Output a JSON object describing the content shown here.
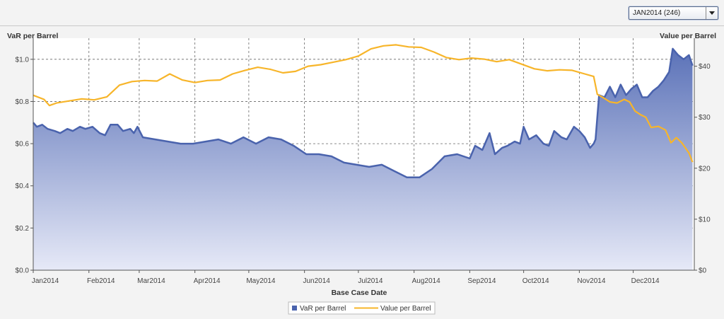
{
  "dropdown": {
    "selected": "JAN2014 (246)"
  },
  "colors": {
    "var": "#4a63ad",
    "value": "#f7b52a",
    "grid": "#666666",
    "background": "#f3f3f3"
  },
  "icons": {
    "dropdown": "triangle-down-icon"
  },
  "chart_data": {
    "type": "line",
    "xlabel": "Base Case Date",
    "y_left_label": "VaR per Barrel",
    "y_right_label": "Value per Barrel",
    "y_left_range": [
      0,
      1.1
    ],
    "y_right_range": [
      0,
      45.5
    ],
    "y_left_ticks": [
      {
        "v": 0.0,
        "label": "$0.0"
      },
      {
        "v": 0.2,
        "label": "$0.2"
      },
      {
        "v": 0.4,
        "label": "$0.4"
      },
      {
        "v": 0.6,
        "label": "$0.6"
      },
      {
        "v": 0.8,
        "label": "$0.8"
      },
      {
        "v": 1.0,
        "label": "$1.0"
      }
    ],
    "y_right_ticks": [
      {
        "v": 0,
        "label": "$0"
      },
      {
        "v": 10,
        "label": "$10"
      },
      {
        "v": 20,
        "label": "$20"
      },
      {
        "v": 30,
        "label": "$30"
      },
      {
        "v": 40,
        "label": "$40"
      }
    ],
    "x_ticks": [
      "Jan2014",
      "Feb2014",
      "Mar2014",
      "Apr2014",
      "May2014",
      "Jun2014",
      "Jul2014",
      "Aug2014",
      "Sep2014",
      "Oct2014",
      "Nov2014",
      "Dec2014"
    ],
    "grid": true,
    "legend_position": "bottom",
    "series": [
      {
        "name": "VaR per Barrel",
        "style": "area",
        "axis": "left",
        "points": [
          [
            "2014-01-01",
            0.7
          ],
          [
            "2014-01-03",
            0.68
          ],
          [
            "2014-01-06",
            0.69
          ],
          [
            "2014-01-09",
            0.67
          ],
          [
            "2014-01-13",
            0.66
          ],
          [
            "2014-01-16",
            0.65
          ],
          [
            "2014-01-20",
            0.67
          ],
          [
            "2014-01-23",
            0.66
          ],
          [
            "2014-01-27",
            0.68
          ],
          [
            "2014-01-30",
            0.67
          ],
          [
            "2014-02-03",
            0.68
          ],
          [
            "2014-02-07",
            0.65
          ],
          [
            "2014-02-10",
            0.64
          ],
          [
            "2014-02-13",
            0.69
          ],
          [
            "2014-02-17",
            0.69
          ],
          [
            "2014-02-20",
            0.66
          ],
          [
            "2014-02-24",
            0.67
          ],
          [
            "2014-02-26",
            0.65
          ],
          [
            "2014-02-28",
            0.68
          ],
          [
            "2014-03-03",
            0.63
          ],
          [
            "2014-03-10",
            0.62
          ],
          [
            "2014-03-17",
            0.61
          ],
          [
            "2014-03-24",
            0.6
          ],
          [
            "2014-03-31",
            0.6
          ],
          [
            "2014-04-07",
            0.61
          ],
          [
            "2014-04-14",
            0.62
          ],
          [
            "2014-04-21",
            0.6
          ],
          [
            "2014-04-28",
            0.63
          ],
          [
            "2014-05-05",
            0.6
          ],
          [
            "2014-05-12",
            0.63
          ],
          [
            "2014-05-19",
            0.62
          ],
          [
            "2014-05-26",
            0.59
          ],
          [
            "2014-06-02",
            0.55
          ],
          [
            "2014-06-09",
            0.55
          ],
          [
            "2014-06-16",
            0.54
          ],
          [
            "2014-06-23",
            0.51
          ],
          [
            "2014-06-30",
            0.5
          ],
          [
            "2014-07-07",
            0.49
          ],
          [
            "2014-07-14",
            0.5
          ],
          [
            "2014-07-21",
            0.47
          ],
          [
            "2014-07-28",
            0.44
          ],
          [
            "2014-08-04",
            0.44
          ],
          [
            "2014-08-11",
            0.48
          ],
          [
            "2014-08-18",
            0.54
          ],
          [
            "2014-08-25",
            0.55
          ],
          [
            "2014-09-01",
            0.53
          ],
          [
            "2014-09-04",
            0.59
          ],
          [
            "2014-09-08",
            0.57
          ],
          [
            "2014-09-12",
            0.65
          ],
          [
            "2014-09-15",
            0.55
          ],
          [
            "2014-09-19",
            0.58
          ],
          [
            "2014-09-22",
            0.59
          ],
          [
            "2014-09-26",
            0.61
          ],
          [
            "2014-09-29",
            0.6
          ],
          [
            "2014-10-01",
            0.68
          ],
          [
            "2014-10-04",
            0.62
          ],
          [
            "2014-10-08",
            0.64
          ],
          [
            "2014-10-12",
            0.6
          ],
          [
            "2014-10-15",
            0.59
          ],
          [
            "2014-10-18",
            0.66
          ],
          [
            "2014-10-22",
            0.63
          ],
          [
            "2014-10-25",
            0.62
          ],
          [
            "2014-10-29",
            0.68
          ],
          [
            "2014-11-01",
            0.66
          ],
          [
            "2014-11-04",
            0.63
          ],
          [
            "2014-11-07",
            0.58
          ],
          [
            "2014-11-09",
            0.6
          ],
          [
            "2014-11-10",
            0.62
          ],
          [
            "2014-11-12",
            0.83
          ],
          [
            "2014-11-15",
            0.82
          ],
          [
            "2014-11-18",
            0.87
          ],
          [
            "2014-11-21",
            0.82
          ],
          [
            "2014-11-24",
            0.88
          ],
          [
            "2014-11-27",
            0.83
          ],
          [
            "2014-11-30",
            0.86
          ],
          [
            "2014-12-03",
            0.88
          ],
          [
            "2014-12-06",
            0.82
          ],
          [
            "2014-12-09",
            0.82
          ],
          [
            "2014-12-12",
            0.85
          ],
          [
            "2014-12-15",
            0.87
          ],
          [
            "2014-12-18",
            0.9
          ],
          [
            "2014-12-21",
            0.94
          ],
          [
            "2014-12-23",
            1.05
          ],
          [
            "2014-12-26",
            1.02
          ],
          [
            "2014-12-29",
            1.0
          ],
          [
            "2015-01-01",
            1.02
          ],
          [
            "2015-01-03",
            0.97
          ]
        ]
      },
      {
        "name": "Value per Barrel",
        "style": "line",
        "axis": "right",
        "points": [
          [
            "2014-01-01",
            34.3
          ],
          [
            "2014-01-07",
            33.5
          ],
          [
            "2014-01-10",
            32.3
          ],
          [
            "2014-01-14",
            32.8
          ],
          [
            "2014-01-21",
            33.2
          ],
          [
            "2014-01-28",
            33.6
          ],
          [
            "2014-02-04",
            33.4
          ],
          [
            "2014-02-11",
            34.0
          ],
          [
            "2014-02-18",
            36.3
          ],
          [
            "2014-02-25",
            37.0
          ],
          [
            "2014-03-04",
            37.2
          ],
          [
            "2014-03-11",
            37.1
          ],
          [
            "2014-03-18",
            38.5
          ],
          [
            "2014-03-25",
            37.3
          ],
          [
            "2014-04-01",
            36.8
          ],
          [
            "2014-04-08",
            37.2
          ],
          [
            "2014-04-15",
            37.3
          ],
          [
            "2014-04-22",
            38.5
          ],
          [
            "2014-04-29",
            39.2
          ],
          [
            "2014-05-06",
            39.8
          ],
          [
            "2014-05-13",
            39.4
          ],
          [
            "2014-05-20",
            38.7
          ],
          [
            "2014-05-27",
            39.0
          ],
          [
            "2014-06-03",
            40.0
          ],
          [
            "2014-06-10",
            40.3
          ],
          [
            "2014-06-17",
            40.8
          ],
          [
            "2014-06-24",
            41.3
          ],
          [
            "2014-07-01",
            42.0
          ],
          [
            "2014-07-08",
            43.4
          ],
          [
            "2014-07-15",
            44.0
          ],
          [
            "2014-07-22",
            44.2
          ],
          [
            "2014-07-29",
            43.8
          ],
          [
            "2014-08-05",
            43.7
          ],
          [
            "2014-08-12",
            42.8
          ],
          [
            "2014-08-19",
            41.7
          ],
          [
            "2014-08-26",
            41.3
          ],
          [
            "2014-09-02",
            41.6
          ],
          [
            "2014-09-09",
            41.4
          ],
          [
            "2014-09-16",
            40.9
          ],
          [
            "2014-09-23",
            41.3
          ],
          [
            "2014-09-30",
            40.4
          ],
          [
            "2014-10-07",
            39.5
          ],
          [
            "2014-10-14",
            39.1
          ],
          [
            "2014-10-21",
            39.3
          ],
          [
            "2014-10-28",
            39.2
          ],
          [
            "2014-11-04",
            38.5
          ],
          [
            "2014-11-09",
            38.0
          ],
          [
            "2014-11-11",
            34.5
          ],
          [
            "2014-11-14",
            33.9
          ],
          [
            "2014-11-18",
            33.0
          ],
          [
            "2014-11-22",
            32.8
          ],
          [
            "2014-11-26",
            33.5
          ],
          [
            "2014-11-29",
            33.0
          ],
          [
            "2014-12-02",
            31.2
          ],
          [
            "2014-12-05",
            30.5
          ],
          [
            "2014-12-08",
            30.0
          ],
          [
            "2014-12-11",
            28.0
          ],
          [
            "2014-12-15",
            28.2
          ],
          [
            "2014-12-19",
            27.5
          ],
          [
            "2014-12-22",
            25.0
          ],
          [
            "2014-12-25",
            26.0
          ],
          [
            "2014-12-28",
            25.0
          ],
          [
            "2015-01-01",
            23.0
          ],
          [
            "2015-01-03",
            21.2
          ]
        ]
      }
    ]
  }
}
